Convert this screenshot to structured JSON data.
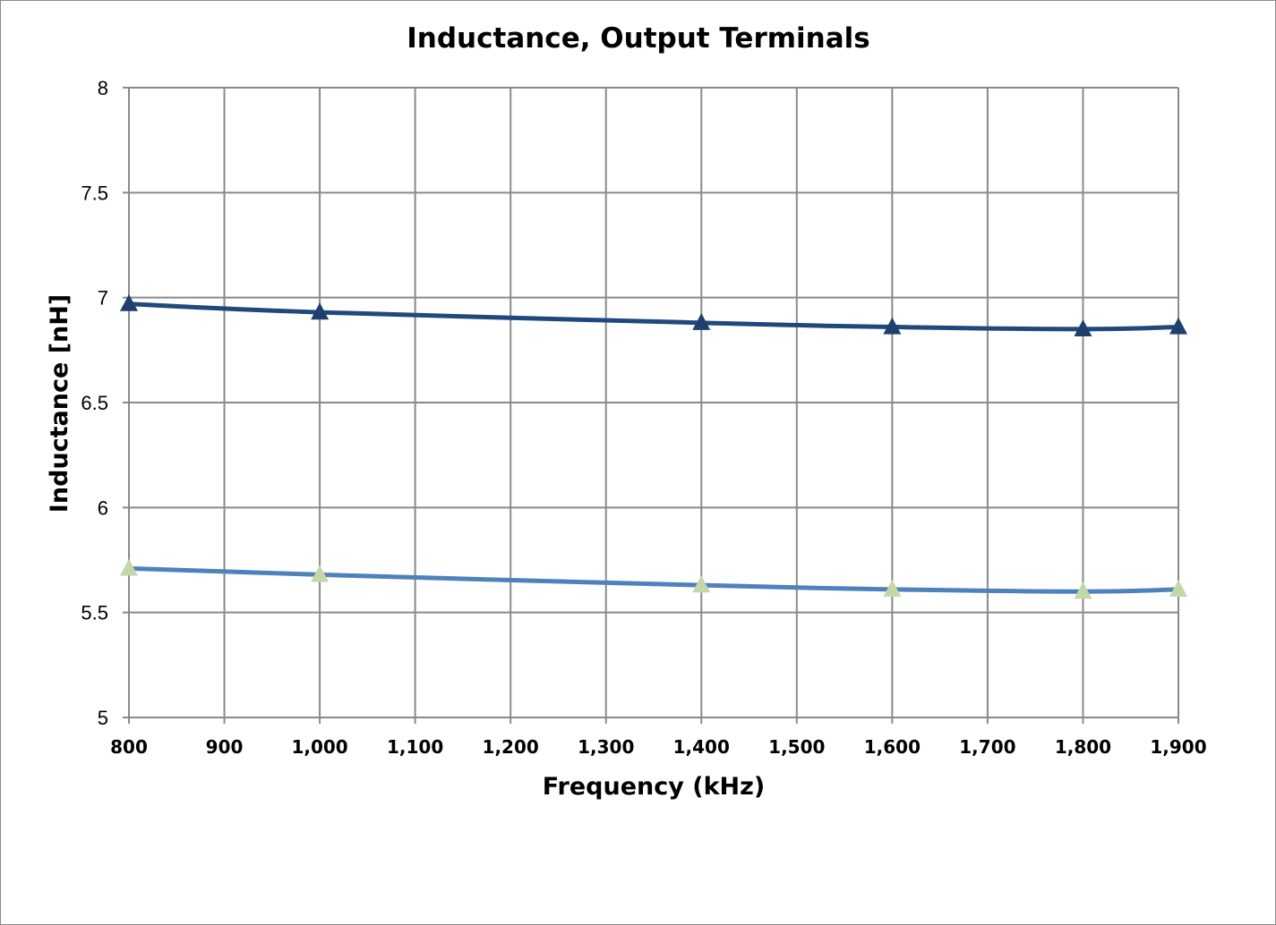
{
  "chart_data": {
    "type": "line",
    "title": "Inductance, Output Terminals",
    "xlabel": "Frequency (kHz)",
    "ylabel": "Inductance [nH]",
    "xlim": [
      800,
      1900
    ],
    "ylim": [
      5,
      8
    ],
    "x_ticks": [
      800,
      900,
      1000,
      1100,
      1200,
      1300,
      1400,
      1500,
      1600,
      1700,
      1800,
      1900
    ],
    "x_tick_labels": [
      "800",
      "900",
      "1,000",
      "1,100",
      "1,200",
      "1,300",
      "1,400",
      "1,500",
      "1,600",
      "1,700",
      "1,800",
      "1,900"
    ],
    "y_ticks": [
      5,
      5.5,
      6,
      6.5,
      7,
      7.5,
      8
    ],
    "y_tick_labels": [
      "5",
      "5.5",
      "6",
      "6.5",
      "7",
      "7.5",
      "8"
    ],
    "grid": true,
    "legend": "none",
    "series": [
      {
        "x": [
          800,
          1000,
          1400,
          1600,
          1800,
          1900
        ],
        "values": [
          6.97,
          6.93,
          6.88,
          6.86,
          6.85,
          6.86
        ],
        "line_color": "#1f497d",
        "marker": "triangle",
        "marker_color": "#1f3f6e"
      },
      {
        "x": [
          800,
          1000,
          1400,
          1600,
          1800,
          1900
        ],
        "values": [
          5.71,
          5.68,
          5.63,
          5.61,
          5.6,
          5.61
        ],
        "line_color": "#4f81bd",
        "marker": "triangle",
        "marker_color": "#c4d7a9"
      }
    ]
  }
}
